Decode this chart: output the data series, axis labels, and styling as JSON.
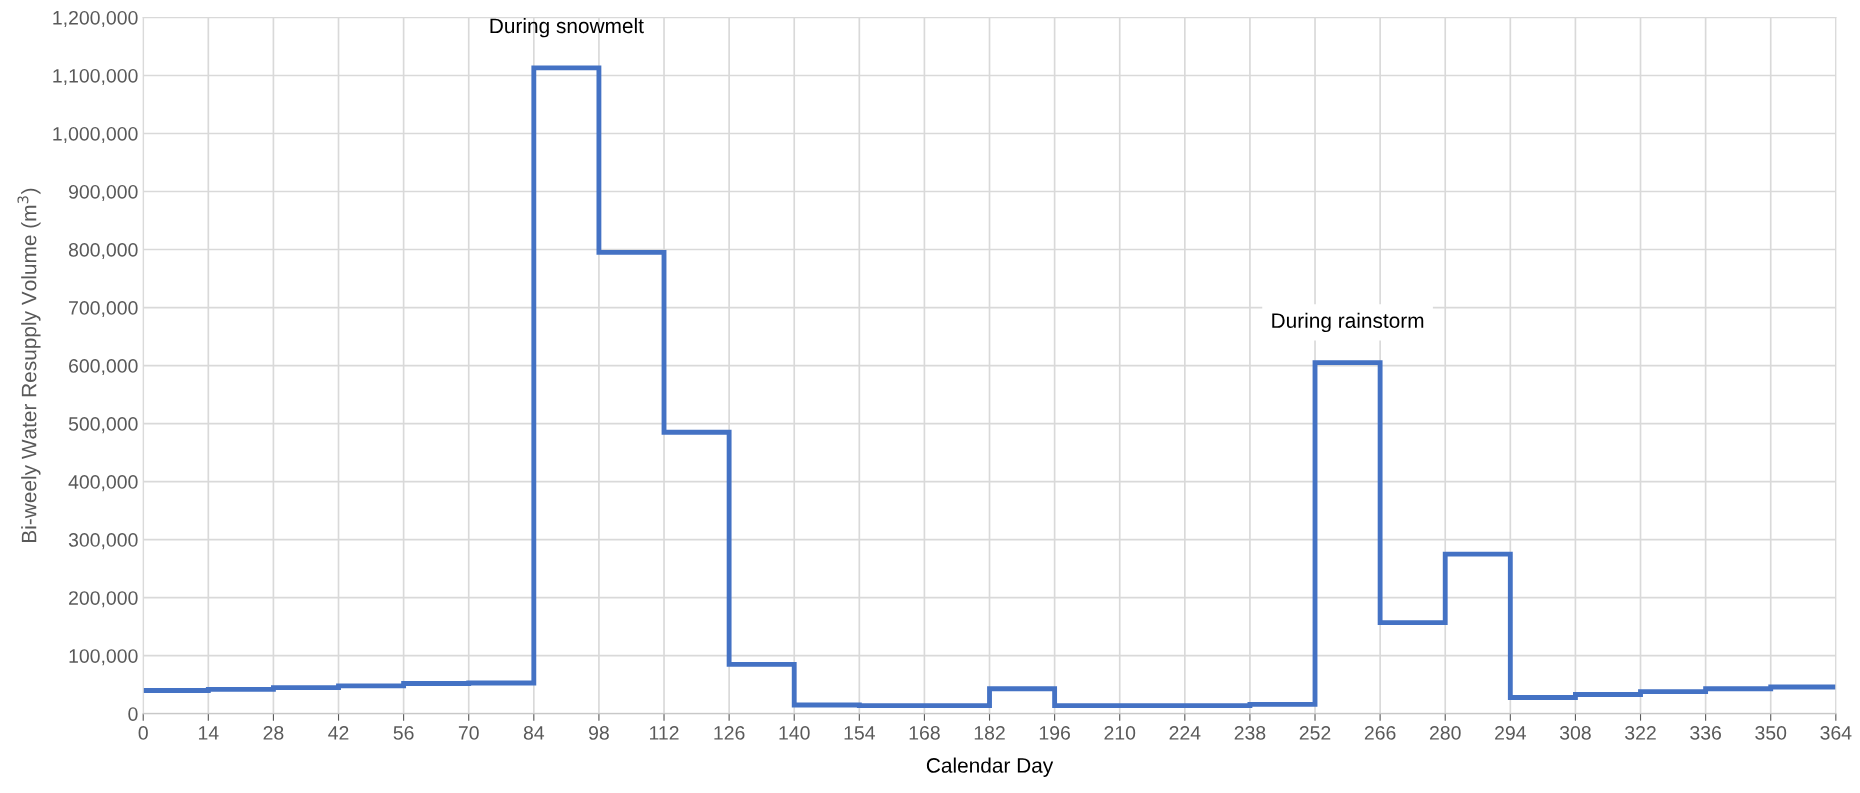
{
  "chart_data": {
    "type": "step",
    "xlabel": "Calendar Day",
    "ylabel": "Bi-weely Water Resupply Volume (m$^{3}$)",
    "x": [
      0,
      14,
      28,
      42,
      56,
      70,
      84,
      98,
      112,
      126,
      140,
      154,
      168,
      182,
      196,
      210,
      224,
      238,
      252,
      266,
      280,
      294,
      308,
      322,
      336,
      350,
      364
    ],
    "series": [
      {
        "color": "#4472c4",
        "values": [
          40000,
          42000,
          45000,
          48000,
          52000,
          53000,
          1113000,
          795000,
          485000,
          85000,
          15000,
          14000,
          14000,
          43000,
          14000,
          14000,
          14000,
          16000,
          605000,
          157000,
          275000,
          28000,
          33000,
          38000,
          43000,
          46000,
          46000
        ]
      }
    ],
    "xlim": [
      0,
      364
    ],
    "xticks": [
      0,
      14,
      28,
      42,
      56,
      70,
      84,
      98,
      112,
      126,
      140,
      154,
      168,
      182,
      196,
      210,
      224,
      238,
      252,
      266,
      280,
      294,
      308,
      322,
      336,
      350,
      364
    ],
    "ylim": [
      0,
      1200000
    ],
    "yticks": [
      {
        "value": 0,
        "label": "0"
      },
      {
        "value": 100000,
        "label": "100,000"
      },
      {
        "value": 200000,
        "label": "200,000"
      },
      {
        "value": 300000,
        "label": "300,000"
      },
      {
        "value": 400000,
        "label": "400,000"
      },
      {
        "value": 500000,
        "label": "500,000"
      },
      {
        "value": 600000,
        "label": "600,000"
      },
      {
        "value": 700000,
        "label": "700,000"
      },
      {
        "value": 800000,
        "label": "800,000"
      },
      {
        "value": 900000,
        "label": "900,000"
      },
      {
        "value": 1000000,
        "label": "1,000,000"
      },
      {
        "value": 1100000,
        "label": "1,100,000"
      },
      {
        "value": 1200000,
        "label": "1,200,000"
      }
    ],
    "grid": true,
    "line_style": "solid",
    "marker": "none",
    "annotations": [
      {
        "text": "During snowmelt",
        "x": 91,
        "y": 1113000
      },
      {
        "text": "During rainstorm",
        "x": 259,
        "y": 605000
      }
    ]
  }
}
